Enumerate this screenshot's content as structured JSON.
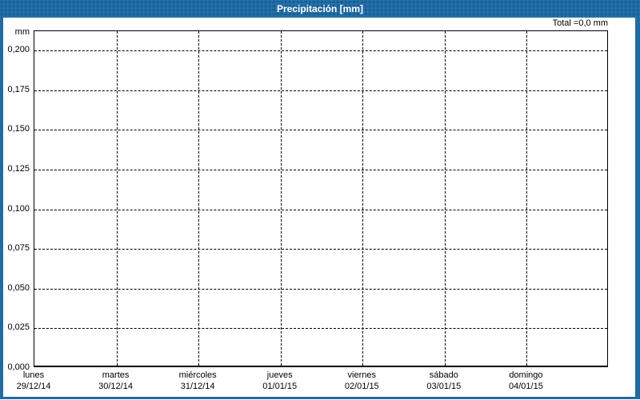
{
  "title_bar": {
    "title": "Precipitación [mm]"
  },
  "header": {
    "total_label": "Total =0,0 mm"
  },
  "y_axis": {
    "unit_label": "mm"
  },
  "colors": {
    "frame_blue": "#1e6ca6",
    "title_text": "#ffffff",
    "grid": "#000000",
    "plot_background": "#ffffff"
  },
  "chart_data": {
    "type": "bar",
    "title": "Precipitación [mm]",
    "ylabel": "mm",
    "xlabel": "",
    "total_annotation": "Total =0,0 mm",
    "total_mm": 0.0,
    "grid": "dashed",
    "legend": "none",
    "ylim": [
      0,
      0.212
    ],
    "y_tick_labels": [
      "0,200",
      "0,175",
      "0,150",
      "0,125",
      "0,100",
      "0,075",
      "0,050",
      "0,025",
      "0,000"
    ],
    "y_tick_values": [
      0.2,
      0.175,
      0.15,
      0.125,
      0.1,
      0.075,
      0.05,
      0.025,
      0.0
    ],
    "categories": [
      {
        "day": "lunes",
        "date": "29/12/14"
      },
      {
        "day": "martes",
        "date": "30/12/14"
      },
      {
        "day": "miércoles",
        "date": "31/12/14"
      },
      {
        "day": "jueves",
        "date": "01/01/15"
      },
      {
        "day": "viernes",
        "date": "02/01/15"
      },
      {
        "day": "sábado",
        "date": "03/01/15"
      },
      {
        "day": "domingo",
        "date": "04/01/15"
      }
    ],
    "values": [
      0,
      0,
      0,
      0,
      0,
      0,
      0
    ]
  }
}
